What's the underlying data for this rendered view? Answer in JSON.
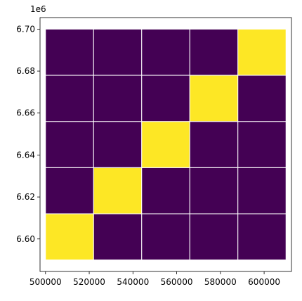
{
  "chart_data": {
    "type": "heatmap",
    "title": "",
    "xlabel": "",
    "ylabel": "",
    "y_offset_label": "1e6",
    "xlim": [
      497500,
      612500
    ],
    "ylim": [
      6.5845,
      6.7055
    ],
    "x_ticks": [
      500000,
      520000,
      540000,
      560000,
      580000,
      600000
    ],
    "x_tick_labels": [
      "500000",
      "520000",
      "540000",
      "560000",
      "580000",
      "600000"
    ],
    "y_ticks": [
      6.6,
      6.62,
      6.64,
      6.66,
      6.68,
      6.7
    ],
    "y_tick_labels": [
      "6.60",
      "6.62",
      "6.64",
      "6.66",
      "6.68",
      "6.70"
    ],
    "x_edges": [
      500000,
      522000,
      544000,
      566000,
      588000,
      610000
    ],
    "y_edges": [
      6.59,
      6.612,
      6.634,
      6.656,
      6.678,
      6.7
    ],
    "values_rows_bottom_to_top": [
      [
        1,
        0,
        0,
        0,
        0
      ],
      [
        0,
        1,
        0,
        0,
        0
      ],
      [
        0,
        0,
        1,
        0,
        0
      ],
      [
        0,
        0,
        0,
        1,
        0
      ],
      [
        0,
        0,
        0,
        0,
        1
      ]
    ],
    "colors": {
      "low": "#440154",
      "high": "#fde725",
      "cell_edge": "#ffffff"
    },
    "grid": false,
    "legend": "none"
  }
}
